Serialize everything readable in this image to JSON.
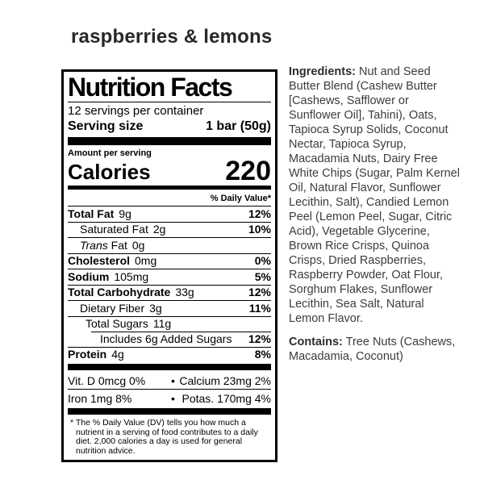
{
  "page": {
    "title": "raspberries & lemons"
  },
  "colors": {
    "label_text": "#000000",
    "product_title_text": "#2b2728",
    "ingredients_text": "#3c3c3c",
    "background": "#ffffff"
  },
  "nutrition_label": {
    "title": "Nutrition Facts",
    "servings_per_container": "12 servings per container",
    "serving_size_label": "Serving size",
    "serving_size_value": "1 bar (50g)",
    "amount_per_serving": "Amount per serving",
    "calories_label": "Calories",
    "calories_value": "220",
    "daily_value_header": "% Daily Value*",
    "rows": [
      {
        "name": "Total Fat",
        "amount": "9g",
        "dv": "12%",
        "bold": true,
        "indent": 0
      },
      {
        "name": "Saturated Fat",
        "amount": "2g",
        "dv": "10%",
        "bold": false,
        "indent": 1
      },
      {
        "name": "Trans Fat",
        "amount": "0g",
        "dv": "",
        "bold": false,
        "indent": 1,
        "italic_first_word": true
      },
      {
        "name": "Cholesterol",
        "amount": "0mg",
        "dv": "0%",
        "bold": true,
        "indent": 0
      },
      {
        "name": "Sodium",
        "amount": "105mg",
        "dv": "5%",
        "bold": true,
        "indent": 0
      },
      {
        "name": "Total Carbohydrate",
        "amount": "33g",
        "dv": "12%",
        "bold": true,
        "indent": 0
      },
      {
        "name": "Dietary Fiber",
        "amount": "3g",
        "dv": "11%",
        "bold": false,
        "indent": 1
      },
      {
        "name": "Total Sugars",
        "amount": "11g",
        "dv": "",
        "bold": false,
        "indent": 2
      },
      {
        "name": "Includes 6g Added Sugars",
        "amount": "",
        "dv": "12%",
        "bold": false,
        "indent": 3,
        "rule_indent": true
      },
      {
        "name": "Protein",
        "amount": "4g",
        "dv": "8%",
        "bold": true,
        "indent": 0
      }
    ],
    "micronutrient_rows": [
      {
        "left": {
          "name": "Vit. D",
          "amount": "0mcg",
          "dv": "0%"
        },
        "separator": "•",
        "right": {
          "name": "Calcium",
          "amount": "23mg",
          "dv": "2%"
        }
      },
      {
        "left": {
          "name": "Iron",
          "amount": "1mg",
          "dv": "8%"
        },
        "separator": "•",
        "right": {
          "name": "Potas.",
          "amount": "170mg",
          "dv": "4%"
        }
      }
    ],
    "footnote": "* The % Daily Value (DV) tells you how much a nutrient in a serving of food contributes to a daily diet. 2,000 calories a day is used for general nutrition advice."
  },
  "ingredients": {
    "label": "Ingredients:",
    "text": "Nut and Seed Butter Blend (Cashew Butter [Cashews, Safflower or Sunflower Oil], Tahini), Oats, Tapioca Syrup Solids, Coconut Nectar, Tapioca Syrup, Macadamia Nuts, Dairy Free White Chips (Sugar, Palm Kernel Oil, Natural Flavor, Sunflower Lecithin, Salt), Candied Lemon Peel (Lemon Peel, Sugar, Citric Acid), Vegetable Glycerine, Brown Rice Crisps, Quinoa Crisps, Dried Raspberries, Raspberry Powder, Oat Flour, Sorghum Flakes, Sunflower Lecithin, Sea Salt, Natural Lemon Flavor.",
    "contains_label": "Contains:",
    "contains_text": "Tree Nuts (Cashews, Macadamia, Coconut)"
  }
}
